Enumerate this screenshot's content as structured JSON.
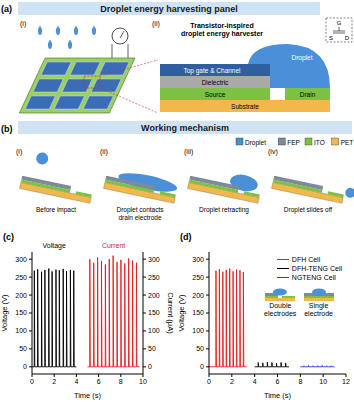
{
  "figure": {
    "a": {
      "label": "(a)",
      "title": "Droplet energy harvesting panel",
      "sub_labels": [
        "(i)",
        "(ii)"
      ],
      "device": {
        "title": "Transistor-inspired droplet energy harvester",
        "top_gate": "Top gate & Channel",
        "dielectric": "Dielectric",
        "source": "Source",
        "drain": "Drain",
        "substrate": "Substrate",
        "droplet": "Droplet",
        "symbol": [
          "G",
          "S",
          "D"
        ]
      }
    },
    "b": {
      "label": "(b)",
      "title": "Working mechanism",
      "legend": [
        {
          "name": "Droplet",
          "color": "#4a90d9"
        },
        {
          "name": "FEP",
          "color": "#7d8a99"
        },
        {
          "name": "ITO",
          "color": "#7cc242"
        },
        {
          "name": "PET",
          "color": "#f2b84b"
        }
      ],
      "steps": [
        {
          "label": "(i)",
          "caption": "Before impact"
        },
        {
          "label": "(ii)",
          "caption": "Droplet contacts drain electrode"
        },
        {
          "label": "(iii)",
          "caption": "Droplet retracting"
        },
        {
          "label": "(iv)",
          "caption": "Droplet slides off"
        }
      ]
    }
  },
  "chart_data": [
    {
      "label": "(c)",
      "type": "line",
      "x_label": "Time (s)",
      "y_label": "Voltage (V)",
      "y2_label": "Current (μA)",
      "xlim": [
        0,
        10
      ],
      "xticks": [
        0,
        2,
        4,
        6,
        8,
        10
      ],
      "ylim": [
        -20,
        320
      ],
      "yticks": [
        0,
        50,
        100,
        150,
        200,
        250,
        300
      ],
      "y2lim": [
        -20,
        320
      ],
      "y2ticks": [
        0,
        50,
        100,
        150,
        200,
        250,
        300
      ],
      "series": [
        {
          "name": "Voltage",
          "color": "#000000",
          "x": [
            0,
            0.2,
            0.21,
            0.25,
            0.5,
            0.51,
            0.55,
            0.85,
            0.86,
            0.9,
            1.15,
            1.16,
            1.2,
            1.5,
            1.51,
            1.55,
            1.8,
            1.81,
            1.85,
            2.15,
            2.16,
            2.2,
            2.45,
            2.46,
            2.5,
            2.8,
            2.81,
            2.85,
            3.1,
            3.11,
            3.15,
            3.45,
            3.46,
            3.5,
            3.75,
            3.76,
            3.8,
            4.0
          ],
          "values": [
            0,
            0,
            268,
            0,
            0,
            272,
            0,
            0,
            265,
            0,
            0,
            270,
            0,
            0,
            274,
            0,
            0,
            266,
            0,
            0,
            271,
            0,
            0,
            269,
            0,
            0,
            273,
            0,
            0,
            267,
            0,
            0,
            270,
            0,
            0,
            268,
            0,
            0
          ]
        },
        {
          "name": "Current",
          "color": "#e41a1c",
          "axis": "y2",
          "x": [
            5.0,
            5.2,
            5.21,
            5.25,
            5.55,
            5.56,
            5.6,
            5.9,
            5.91,
            5.95,
            6.25,
            6.26,
            6.3,
            6.6,
            6.61,
            6.65,
            6.95,
            6.96,
            7.0,
            7.3,
            7.31,
            7.35,
            7.65,
            7.66,
            7.7,
            8.0,
            8.01,
            8.05,
            8.35,
            8.36,
            8.4,
            8.7,
            8.71,
            8.75,
            9.05,
            9.06,
            9.1,
            9.4,
            9.41,
            9.45,
            9.7
          ],
          "values": [
            0,
            0,
            300,
            0,
            0,
            290,
            0,
            0,
            305,
            0,
            0,
            295,
            0,
            0,
            285,
            0,
            0,
            300,
            0,
            0,
            310,
            0,
            0,
            292,
            0,
            0,
            298,
            0,
            0,
            288,
            0,
            0,
            302,
            0,
            0,
            296,
            0,
            0,
            290,
            0,
            0
          ]
        }
      ]
    },
    {
      "label": "(d)",
      "type": "line",
      "x_label": "Time (s)",
      "y_label": "Voltage (V)",
      "xlim": [
        0,
        12
      ],
      "xticks": [
        0,
        2,
        4,
        6,
        8,
        10,
        12
      ],
      "ylim": [
        -20,
        320
      ],
      "yticks": [
        0,
        50,
        100,
        150,
        200,
        250,
        300
      ],
      "legend": "upper right",
      "annotations": [
        "Double electrodes",
        "Single electrode"
      ],
      "series": [
        {
          "name": "DFH Cell",
          "color": "#e41a1c",
          "x": [
            0,
            0.6,
            0.61,
            0.65,
            0.9,
            0.91,
            0.95,
            1.2,
            1.21,
            1.25,
            1.5,
            1.51,
            1.55,
            1.8,
            1.81,
            1.85,
            2.1,
            2.11,
            2.15,
            2.4,
            2.41,
            2.45,
            2.7,
            2.71,
            2.75,
            3.0,
            3.01,
            3.05,
            3.3
          ],
          "values": [
            0,
            0,
            268,
            0,
            0,
            272,
            0,
            0,
            265,
            0,
            0,
            270,
            0,
            0,
            274,
            0,
            0,
            266,
            0,
            0,
            271,
            0,
            0,
            269,
            0,
            0,
            264,
            0,
            0
          ]
        },
        {
          "name": "DFH-TENG Cell",
          "color": "#000000",
          "x": [
            4.0,
            4.3,
            4.31,
            4.35,
            4.7,
            4.71,
            4.75,
            5.1,
            5.11,
            5.15,
            5.5,
            5.51,
            5.55,
            5.9,
            5.91,
            5.95,
            6.3,
            6.31,
            6.35,
            6.7,
            6.71,
            6.75,
            7.0
          ],
          "values": [
            0,
            0,
            12,
            0,
            0,
            11,
            0,
            0,
            13,
            0,
            0,
            12,
            0,
            0,
            10,
            0,
            0,
            12,
            0,
            0,
            11,
            0,
            0
          ]
        },
        {
          "name": "NGTENG Cell",
          "color": "#1f3fd6",
          "x": [
            8.0,
            8.3,
            8.31,
            8.35,
            8.7,
            8.71,
            8.75,
            9.1,
            9.11,
            9.15,
            9.5,
            9.51,
            9.55,
            9.9,
            9.91,
            9.95,
            10.3,
            10.31,
            10.35,
            10.7,
            10.71,
            10.75,
            11.0
          ],
          "values": [
            0,
            0,
            3,
            0,
            0,
            4,
            0,
            0,
            3,
            0,
            0,
            3,
            0,
            0,
            4,
            0,
            0,
            3,
            0,
            0,
            3,
            0,
            0
          ]
        }
      ]
    }
  ]
}
